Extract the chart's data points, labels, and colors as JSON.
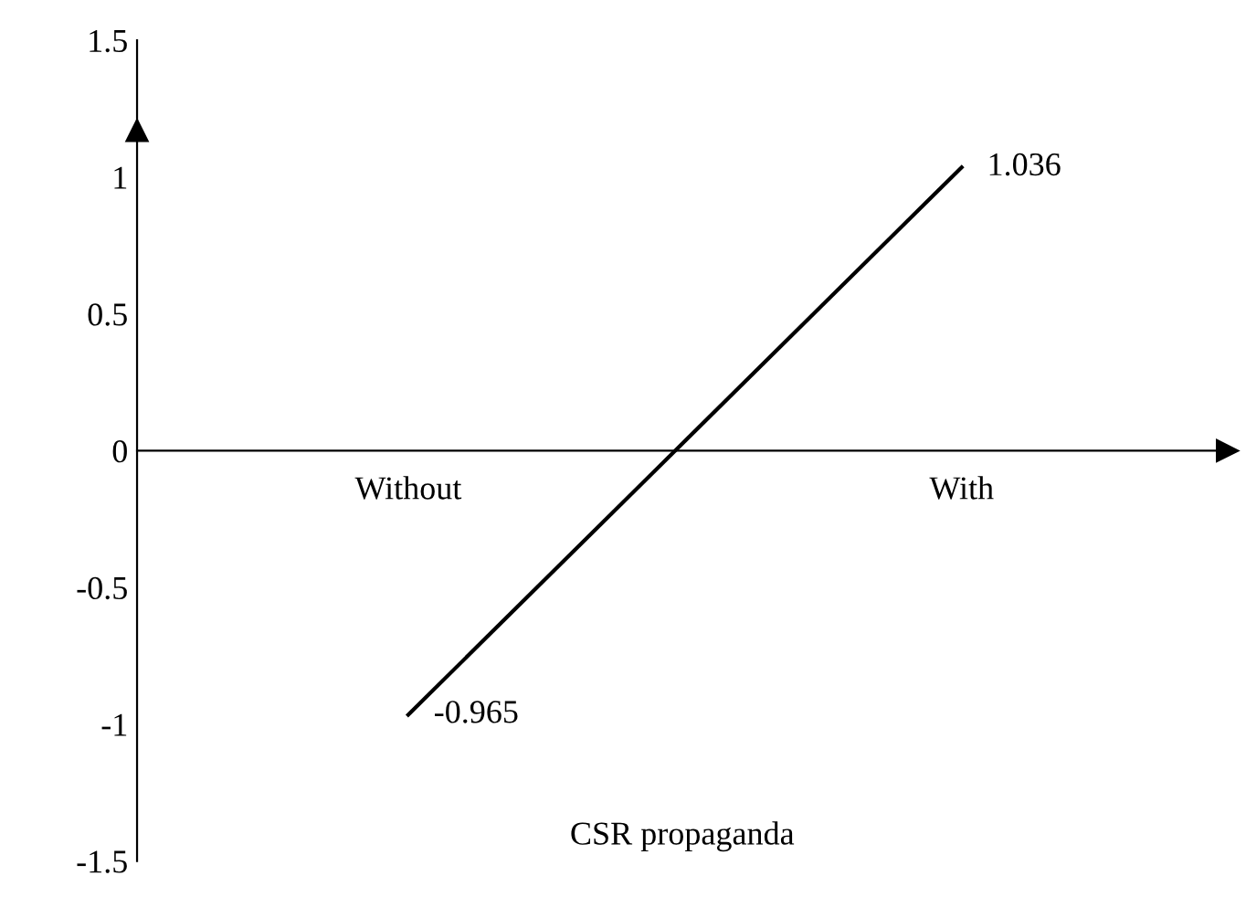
{
  "chart_data": {
    "type": "line",
    "xlabel": "CSR propaganda",
    "categories": [
      "Without",
      "With"
    ],
    "series": [
      {
        "color": "#000000",
        "values": [
          -0.965,
          1.036
        ]
      }
    ],
    "ylim": [
      -1.5,
      1.5
    ],
    "yticks": [
      1.5,
      1,
      0.5,
      0,
      -0.5,
      -1,
      -1.5
    ],
    "data_labels": true,
    "grid": false,
    "legend": false,
    "marker": "none",
    "line_style": "solid"
  }
}
